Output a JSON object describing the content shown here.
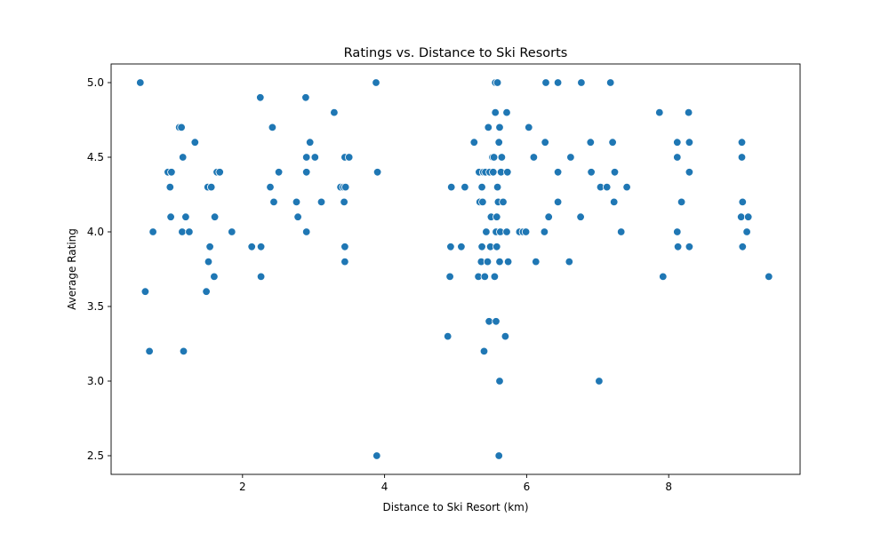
{
  "chart_data": {
    "type": "scatter",
    "title": "Ratings vs. Distance to Ski Resorts",
    "xlabel": "Distance to Ski Resort (km)",
    "ylabel": "Average Rating",
    "xlim": [
      0.15,
      9.85
    ],
    "ylim": [
      2.375,
      5.125
    ],
    "xticks": [
      2,
      4,
      6,
      8
    ],
    "xtick_labels": [
      "2",
      "4",
      "6",
      "8"
    ],
    "yticks": [
      2.5,
      3.0,
      3.5,
      4.0,
      4.5,
      5.0
    ],
    "ytick_labels": [
      "2.5",
      "3.0",
      "3.5",
      "4.0",
      "4.5",
      "5.0"
    ],
    "grid": false,
    "color": "#1f77b4",
    "points": [
      [
        0.56,
        5.0
      ],
      [
        0.63,
        3.6
      ],
      [
        0.69,
        3.2
      ],
      [
        0.74,
        4.0
      ],
      [
        0.95,
        4.4
      ],
      [
        0.98,
        4.3
      ],
      [
        0.99,
        4.1
      ],
      [
        1.0,
        4.4
      ],
      [
        1.11,
        4.7
      ],
      [
        1.14,
        4.7
      ],
      [
        1.15,
        4.0
      ],
      [
        1.16,
        4.5
      ],
      [
        1.17,
        3.2
      ],
      [
        1.2,
        4.1
      ],
      [
        1.25,
        4.0
      ],
      [
        1.33,
        4.6
      ],
      [
        1.49,
        3.6
      ],
      [
        1.51,
        4.3
      ],
      [
        1.52,
        3.8
      ],
      [
        1.54,
        3.9
      ],
      [
        1.56,
        4.3
      ],
      [
        1.6,
        3.7
      ],
      [
        1.61,
        4.1
      ],
      [
        1.64,
        4.4
      ],
      [
        1.68,
        4.4
      ],
      [
        1.85,
        4.0
      ],
      [
        2.13,
        3.9
      ],
      [
        2.25,
        4.9
      ],
      [
        2.26,
        3.9
      ],
      [
        2.26,
        3.7
      ],
      [
        2.39,
        4.3
      ],
      [
        2.42,
        4.7
      ],
      [
        2.44,
        4.2
      ],
      [
        2.51,
        4.4
      ],
      [
        2.76,
        4.2
      ],
      [
        2.78,
        4.1
      ],
      [
        2.89,
        4.9
      ],
      [
        2.9,
        4.5
      ],
      [
        2.9,
        4.4
      ],
      [
        2.9,
        4.0
      ],
      [
        2.95,
        4.6
      ],
      [
        3.02,
        4.5
      ],
      [
        3.11,
        4.2
      ],
      [
        3.29,
        4.8
      ],
      [
        3.38,
        4.3
      ],
      [
        3.42,
        4.3
      ],
      [
        3.43,
        4.2
      ],
      [
        3.44,
        4.5
      ],
      [
        3.44,
        3.9
      ],
      [
        3.44,
        3.8
      ],
      [
        3.45,
        4.3
      ],
      [
        3.5,
        4.5
      ],
      [
        3.88,
        5.0
      ],
      [
        3.89,
        2.5
      ],
      [
        3.9,
        4.4
      ],
      [
        4.89,
        3.3
      ],
      [
        4.92,
        3.7
      ],
      [
        4.93,
        3.9
      ],
      [
        4.94,
        4.3
      ],
      [
        5.08,
        3.9
      ],
      [
        5.13,
        4.3
      ],
      [
        5.26,
        4.6
      ],
      [
        5.32,
        3.7
      ],
      [
        5.33,
        4.4
      ],
      [
        5.34,
        4.2
      ],
      [
        5.36,
        3.8
      ],
      [
        5.37,
        4.3
      ],
      [
        5.37,
        3.9
      ],
      [
        5.38,
        4.2
      ],
      [
        5.39,
        4.4
      ],
      [
        5.4,
        3.2
      ],
      [
        5.41,
        3.7
      ],
      [
        5.42,
        4.4
      ],
      [
        5.43,
        4.0
      ],
      [
        5.45,
        3.8
      ],
      [
        5.46,
        4.7
      ],
      [
        5.47,
        3.4
      ],
      [
        5.48,
        4.4
      ],
      [
        5.49,
        3.9
      ],
      [
        5.5,
        4.1
      ],
      [
        5.52,
        4.5
      ],
      [
        5.53,
        4.4
      ],
      [
        5.54,
        4.5
      ],
      [
        5.55,
        3.7
      ],
      [
        5.56,
        4.8
      ],
      [
        5.56,
        5.0
      ],
      [
        5.57,
        4.0
      ],
      [
        5.57,
        3.4
      ],
      [
        5.58,
        3.9
      ],
      [
        5.58,
        4.1
      ],
      [
        5.59,
        5.0
      ],
      [
        5.59,
        4.3
      ],
      [
        5.6,
        4.2
      ],
      [
        5.61,
        4.6
      ],
      [
        5.62,
        4.7
      ],
      [
        5.62,
        3.8
      ],
      [
        5.62,
        3.0
      ],
      [
        5.63,
        4.0
      ],
      [
        5.64,
        4.4
      ],
      [
        5.61,
        2.5
      ],
      [
        5.65,
        4.5
      ],
      [
        5.67,
        4.2
      ],
      [
        5.7,
        3.3
      ],
      [
        5.72,
        4.0
      ],
      [
        5.72,
        4.8
      ],
      [
        5.73,
        4.4
      ],
      [
        5.74,
        3.8
      ],
      [
        5.9,
        4.0
      ],
      [
        5.95,
        4.0
      ],
      [
        5.99,
        4.0
      ],
      [
        6.03,
        4.7
      ],
      [
        6.1,
        4.5
      ],
      [
        6.13,
        3.8
      ],
      [
        6.25,
        4.0
      ],
      [
        6.26,
        4.6
      ],
      [
        6.27,
        5.0
      ],
      [
        6.31,
        4.1
      ],
      [
        6.44,
        5.0
      ],
      [
        6.44,
        4.4
      ],
      [
        6.44,
        4.2
      ],
      [
        6.6,
        3.8
      ],
      [
        6.62,
        4.5
      ],
      [
        6.76,
        4.1
      ],
      [
        6.77,
        5.0
      ],
      [
        6.9,
        4.6
      ],
      [
        6.91,
        4.4
      ],
      [
        7.02,
        3.0
      ],
      [
        7.04,
        4.3
      ],
      [
        7.13,
        4.3
      ],
      [
        7.18,
        5.0
      ],
      [
        7.21,
        4.6
      ],
      [
        7.23,
        4.2
      ],
      [
        7.24,
        4.4
      ],
      [
        7.33,
        4.0
      ],
      [
        7.41,
        4.3
      ],
      [
        7.87,
        4.8
      ],
      [
        7.92,
        3.7
      ],
      [
        8.12,
        4.6
      ],
      [
        8.12,
        4.5
      ],
      [
        8.12,
        4.0
      ],
      [
        8.13,
        3.9
      ],
      [
        8.18,
        4.2
      ],
      [
        8.28,
        4.8
      ],
      [
        8.29,
        4.6
      ],
      [
        8.29,
        4.4
      ],
      [
        8.29,
        3.9
      ],
      [
        9.02,
        4.1
      ],
      [
        9.03,
        4.6
      ],
      [
        9.03,
        4.5
      ],
      [
        9.04,
        4.2
      ],
      [
        9.04,
        3.9
      ],
      [
        9.1,
        4.0
      ],
      [
        9.12,
        4.1
      ],
      [
        9.41,
        3.7
      ]
    ]
  }
}
